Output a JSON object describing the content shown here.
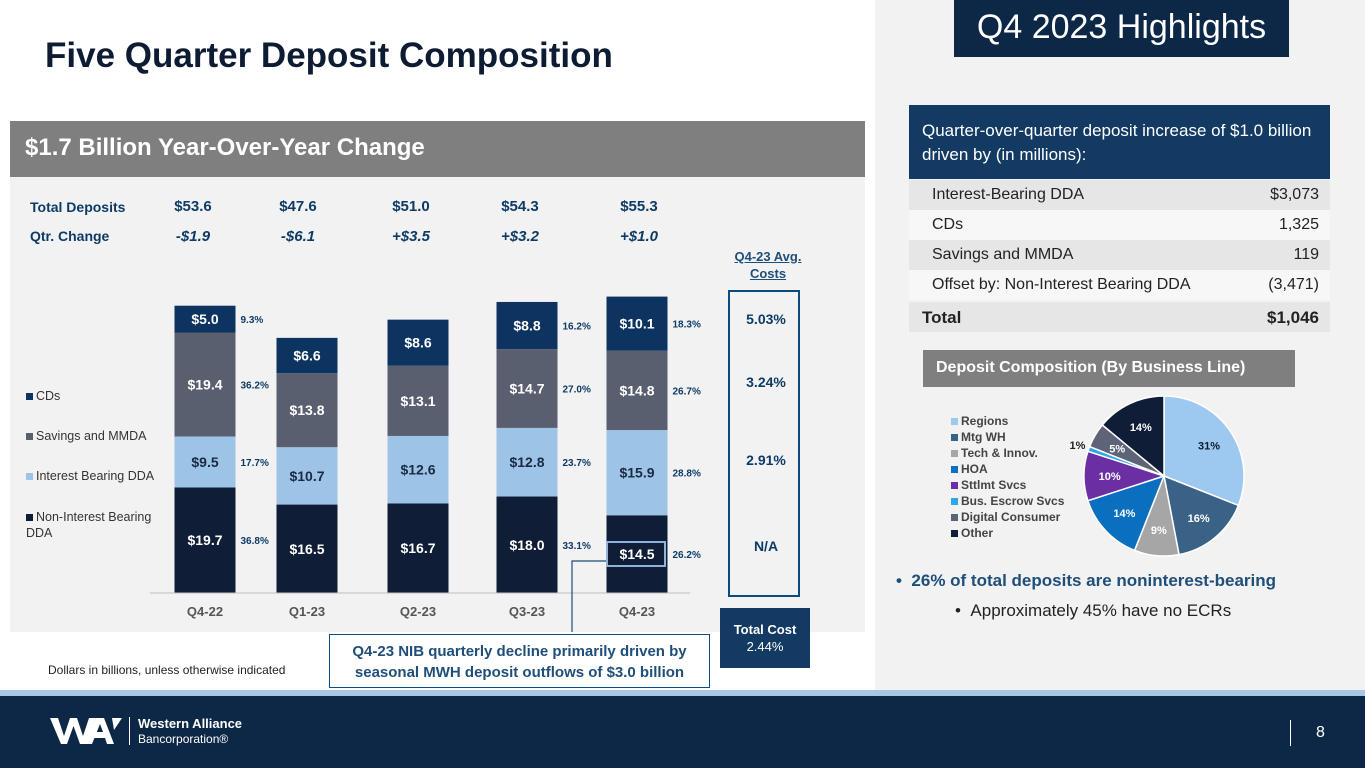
{
  "title": "Five Quarter Deposit Composition",
  "banner": "$1.7 Billion Year-Over-Year Change",
  "totals": {
    "label_total": "Total Deposits",
    "label_change": "Qtr. Change",
    "values": [
      "$53.6",
      "$47.6",
      "$51.0",
      "$54.3",
      "$55.3"
    ],
    "changes": [
      "-$1.9",
      "-$6.1",
      "+$3.5",
      "+$3.2",
      "+$1.0"
    ]
  },
  "legend": [
    "CDs",
    "Savings and MMDA",
    "Interest Bearing DDA",
    "Non-Interest Bearing DDA"
  ],
  "colors": {
    "nib": "#0f1d36",
    "ib": "#9dc3e6",
    "sav": "#5a5f70",
    "cds": "#0d3360",
    "navy": "#123a63",
    "accent": "#1f4e79"
  },
  "chart_data": {
    "type": "bar",
    "stacked": true,
    "categories": [
      "Q4-22",
      "Q1-23",
      "Q2-23",
      "Q3-23",
      "Q4-23"
    ],
    "ylim": [
      0,
      56
    ],
    "series": [
      {
        "name": "Non-Interest Bearing DDA",
        "values": [
          19.7,
          16.5,
          16.7,
          18.0,
          14.5
        ],
        "labels": [
          "$19.7",
          "$16.5",
          "$16.7",
          "$18.0",
          "$14.5"
        ]
      },
      {
        "name": "Interest Bearing DDA",
        "values": [
          9.5,
          10.7,
          12.6,
          12.8,
          15.9
        ],
        "labels": [
          "$9.5",
          "$10.7",
          "$12.6",
          "$12.8",
          "$15.9"
        ]
      },
      {
        "name": "Savings and MMDA",
        "values": [
          19.4,
          13.8,
          13.1,
          14.7,
          14.8
        ],
        "labels": [
          "$19.4",
          "$13.8",
          "$13.1",
          "$14.7",
          "$14.8"
        ]
      },
      {
        "name": "CDs",
        "values": [
          5.0,
          6.6,
          8.6,
          8.8,
          10.1
        ],
        "labels": [
          "$5.0",
          "$6.6",
          "$8.6",
          "$8.8",
          "$10.1"
        ]
      }
    ],
    "percent_labels": {
      "Q4-22": [
        "36.8%",
        "17.7%",
        "36.2%",
        "9.3%"
      ],
      "Q3-23": [
        "33.1%",
        "23.7%",
        "27.0%",
        "16.2%"
      ],
      "Q4-23": [
        "26.2%",
        "28.8%",
        "26.7%",
        "18.3%"
      ]
    }
  },
  "costs": {
    "heading": "Q4-23 Avg. Costs",
    "values": [
      "5.03%",
      "3.24%",
      "2.91%",
      "N/A"
    ],
    "total_label": "Total Cost",
    "total_value": "2.44%"
  },
  "callout": "Q4-23 NIB quarterly decline primarily driven by seasonal MWH deposit outflows of $3.0 billion",
  "footnote": "Dollars in billions, unless otherwise indicated",
  "highlights": {
    "title": "Q4 2023 Highlights",
    "qoq_text": "Quarter-over-quarter deposit increase of $1.0 billion driven by (in millions):",
    "rows": [
      {
        "label": "Interest-Bearing DDA",
        "value": "$3,073"
      },
      {
        "label": "CDs",
        "value": "1,325"
      },
      {
        "label": "Savings and MMDA",
        "value": "119"
      },
      {
        "label": "Offset by: Non-Interest Bearing DDA",
        "value": "(3,471)"
      }
    ],
    "total_label": "Total",
    "total_value": "$1,046"
  },
  "composition": {
    "heading": "Deposit Composition (By Business Line)",
    "slices": [
      {
        "name": "Regions",
        "value": 31,
        "label": "31%",
        "color": "#9dc8f0"
      },
      {
        "name": "Mtg WH",
        "value": 16,
        "label": "16%",
        "color": "#3a6286"
      },
      {
        "name": "Tech & Innov.",
        "value": 9,
        "label": "9%",
        "color": "#a6a6a6"
      },
      {
        "name": "HOA",
        "value": 14,
        "label": "14%",
        "color": "#0b6fbf"
      },
      {
        "name": "Sttlmt Svcs",
        "value": 10,
        "label": "10%",
        "color": "#6b2fa3"
      },
      {
        "name": "Bus. Escrow Svcs",
        "value": 1,
        "label": "1%",
        "color": "#2fa7e6"
      },
      {
        "name": "Digital Consumer",
        "value": 5,
        "label": "5%",
        "color": "#5e6477"
      },
      {
        "name": "Other",
        "value": 14,
        "label": "14%",
        "color": "#0f1d36"
      }
    ]
  },
  "bullets": [
    "26% of total deposits are noninterest-bearing",
    "Approximately 45% have no ECRs"
  ],
  "footer": {
    "company": "Western Alliance",
    "company_sub": "Bancorporation®",
    "page": "8"
  }
}
